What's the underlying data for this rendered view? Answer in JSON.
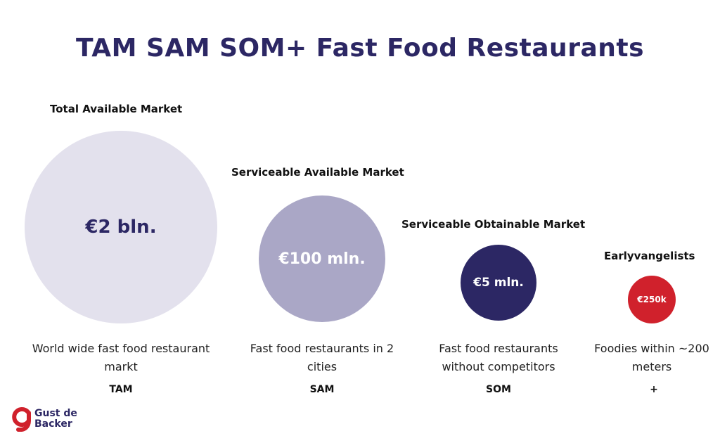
{
  "title": "TAM SAM SOM+ Fast Food Restaurants",
  "markets": [
    {
      "heading": "Total Available Market",
      "value": "€2 bln.",
      "description": "World wide fast food restaurant markt",
      "abbr": "TAM",
      "color": "#e3e1ed"
    },
    {
      "heading": "Serviceable Available Market",
      "value": "€100 mln.",
      "description": "Fast food restaurants in 2 cities",
      "abbr": "SAM",
      "color": "#aaa7c6"
    },
    {
      "heading": "Serviceable Obtainable Market",
      "value": "€5 mln.",
      "description": "Fast food restaurants without competitors",
      "abbr": "SOM",
      "color": "#2c2764"
    },
    {
      "heading": "Earlyvangelists",
      "value": "€250k",
      "description": "Foodies within ~200 meters",
      "abbr": "+",
      "color": "#d0212c"
    }
  ],
  "logo": {
    "line1": "Gust de",
    "line2": "Backer",
    "color": "#d0212c"
  }
}
